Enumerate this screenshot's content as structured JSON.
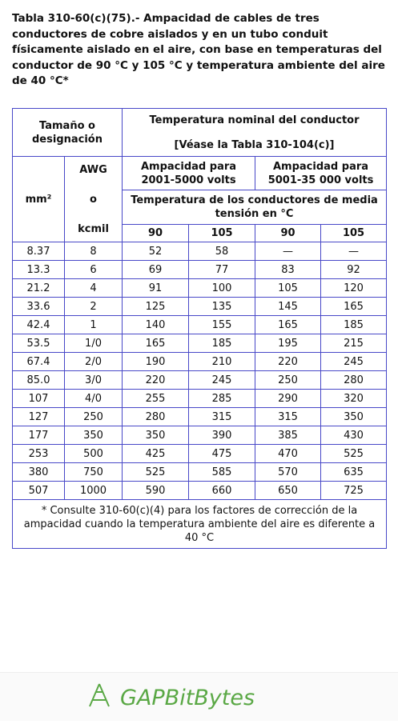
{
  "header": {
    "title": "Tabla 310-60(c)(75).- Ampacidad de cables de tres conductores de cobre aislados y en un tubo conduit físicamente aislado en el aire, con base en temperaturas del conductor de 90 °C y 105 °C y temperatura ambiente del aire de 40 °C*"
  },
  "table": {
    "size_header": "Tamaño o designación",
    "temp_header": "Temperatura nominal del conductor",
    "temp_ref": "[Véase la Tabla 310-104(c)]",
    "mm_header": "mm²",
    "awg_header": [
      "AWG",
      "o",
      "kcmil"
    ],
    "amp_low": "Ampacidad para 2001-5000 volts",
    "amp_high": "Ampacidad para 5001-35 000 volts",
    "media_header": "Temperatura de los conductores de media tensión en °C",
    "temps": [
      "90",
      "105",
      "90",
      "105"
    ],
    "rows": [
      [
        "8.37",
        "8",
        "52",
        "58",
        "—",
        "—"
      ],
      [
        "13.3",
        "6",
        "69",
        "77",
        "83",
        "92"
      ],
      [
        "21.2",
        "4",
        "91",
        "100",
        "105",
        "120"
      ],
      [
        "33.6",
        "2",
        "125",
        "135",
        "145",
        "165"
      ],
      [
        "42.4",
        "1",
        "140",
        "155",
        "165",
        "185"
      ],
      [
        "53.5",
        "1/0",
        "165",
        "185",
        "195",
        "215"
      ],
      [
        "67.4",
        "2/0",
        "190",
        "210",
        "220",
        "245"
      ],
      [
        "85.0",
        "3/0",
        "220",
        "245",
        "250",
        "280"
      ],
      [
        "107",
        "4/0",
        "255",
        "285",
        "290",
        "320"
      ],
      [
        "127",
        "250",
        "280",
        "315",
        "315",
        "350"
      ],
      [
        "177",
        "350",
        "350",
        "390",
        "385",
        "430"
      ],
      [
        "253",
        "500",
        "425",
        "475",
        "470",
        "525"
      ],
      [
        "380",
        "750",
        "525",
        "585",
        "570",
        "635"
      ],
      [
        "507",
        "1000",
        "590",
        "660",
        "650",
        "725"
      ]
    ],
    "footnote": "* Consulte 310-60(c)(4) para los factores de corrección de la ampacidad cuando la temperatura ambiente del aire es diferente a 40 °C"
  },
  "footer": {
    "brand": "GAPBitBytes"
  }
}
